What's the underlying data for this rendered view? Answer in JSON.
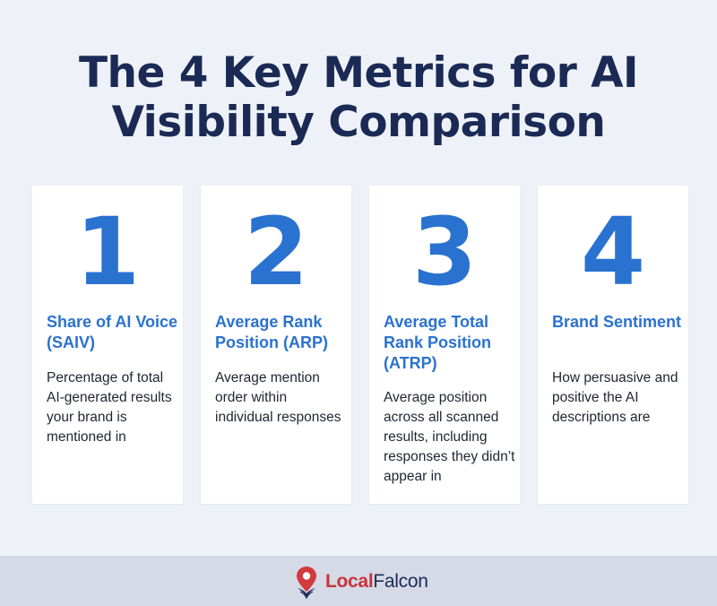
{
  "title": "The 4 Key Metrics for AI Visibility Comparison",
  "cards": [
    {
      "number": "1",
      "title": "Share of AI Voice (SAIV)",
      "description": "Percentage of total AI-generated results your brand is mentioned in"
    },
    {
      "number": "2",
      "title": "Average Rank Position (ARP)",
      "description": "Average mention order within individual responses"
    },
    {
      "number": "3",
      "title": "Average Total Rank Position (ATRP)",
      "description": "Average position across all scanned results, including responses they didn’t appear in"
    },
    {
      "number": "4",
      "title": "Brand Sentiment",
      "description": "How persuasive and positive the AI descriptions are"
    }
  ],
  "footer": {
    "logo_icon": "map-pin-falcon-icon",
    "brand_part1": "Local",
    "brand_part2": "Falcon"
  },
  "colors": {
    "accent": "#2a72d0",
    "title": "#1b2a55",
    "brand_red": "#c8343a",
    "background": "#eef2f8",
    "footer": "#d5dae6"
  }
}
